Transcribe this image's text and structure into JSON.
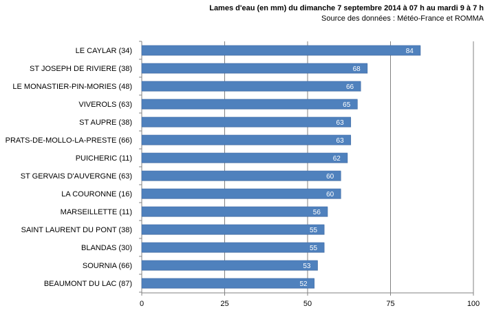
{
  "chart_data": {
    "type": "bar",
    "orientation": "horizontal",
    "title": "Lames d'eau (en mm) du dimanche  7 septembre 2014 à 07 h au mardi 9 à 7 h",
    "subtitle": "Source des données : Météo-France et ROMMA",
    "categories": [
      "LE CAYLAR (34)",
      "ST JOSEPH DE RIVIERE  (38)",
      "LE MONASTIER-PIN-MORIES  (48)",
      "VIVEROLS  (63)",
      "ST AUPRE  (38)",
      "PRATS-DE-MOLLO-LA-PRESTE  (66)",
      "PUICHERIC  (11)",
      "ST GERVAIS  D'AUVERGNE  (63)",
      "LA COURONNE  (16)",
      "MARSEILLETTE  (11)",
      "SAINT LAURENT  DU PONT  (38)",
      "BLANDAS (30)",
      "SOURNIA  (66)",
      "BEAUMONT DU LAC  (87)"
    ],
    "values": [
      84,
      68,
      66,
      65,
      63,
      63,
      62,
      60,
      60,
      56,
      55,
      55,
      53,
      52
    ],
    "xlim": [
      0,
      100
    ],
    "xticks": [
      0,
      25,
      50,
      75,
      100
    ],
    "grid": "vertical",
    "bar_color": "#4f81bd",
    "value_label_color": "#ffffff"
  }
}
